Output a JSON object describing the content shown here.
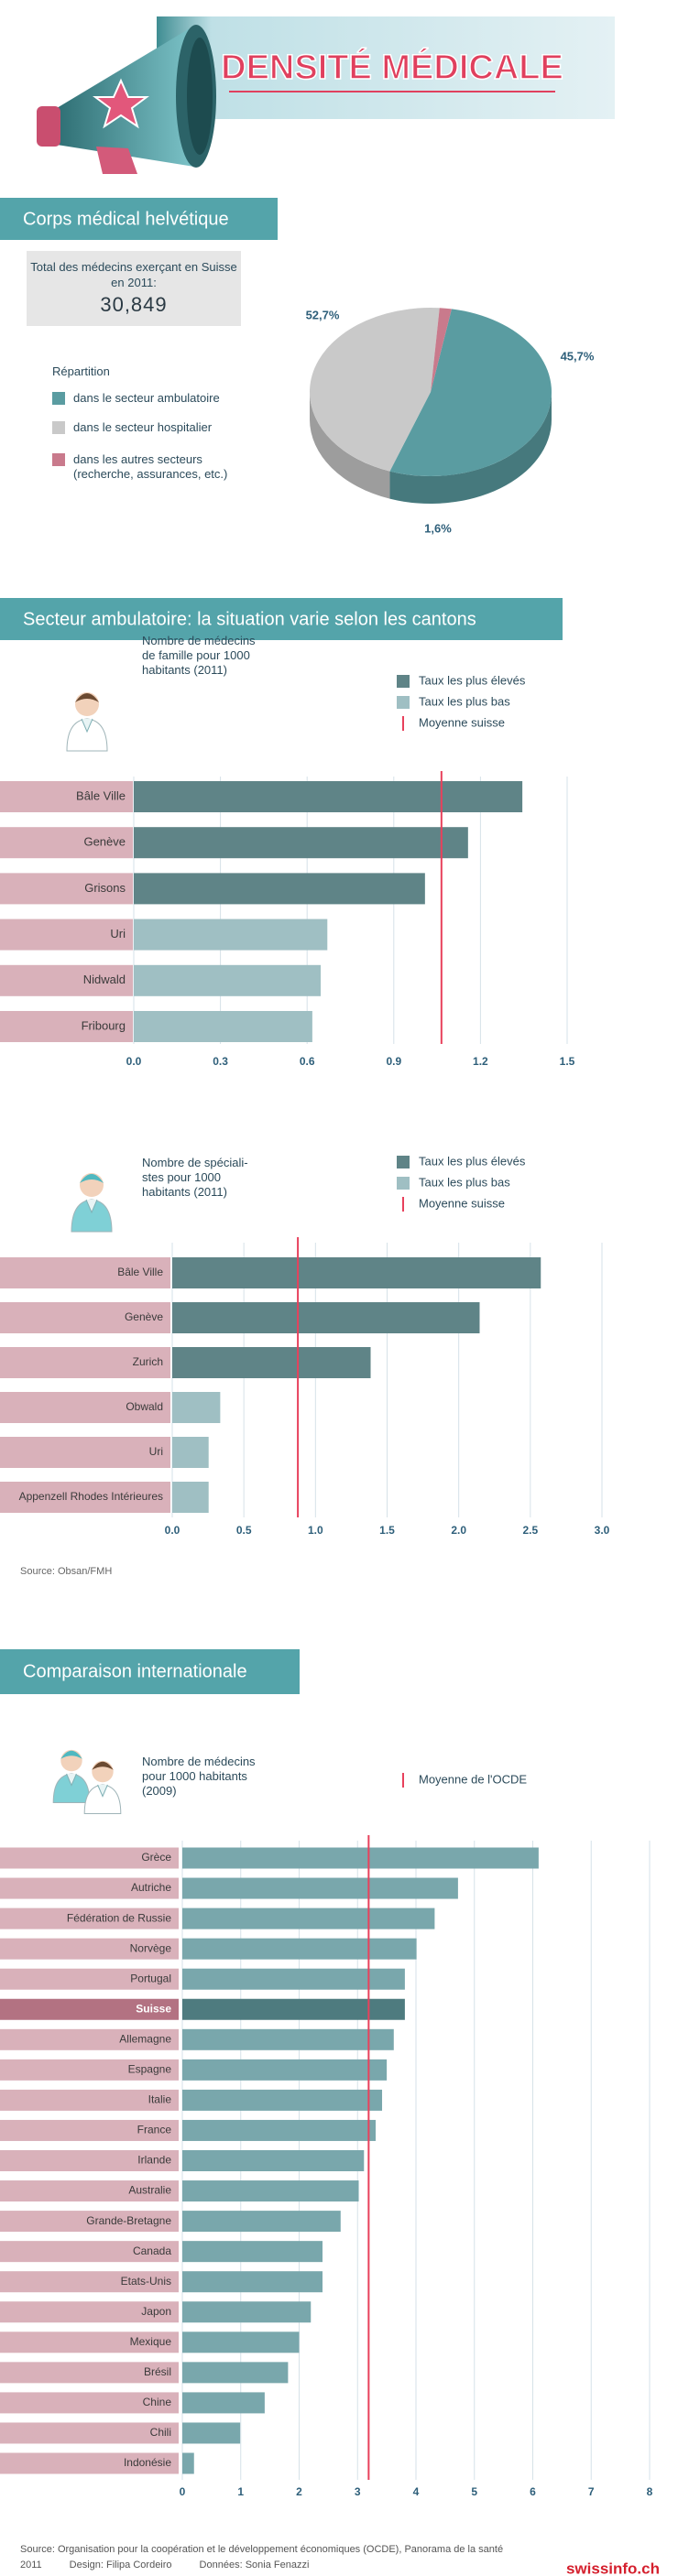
{
  "header": {
    "title": "DENSITÉ MÉDICALE"
  },
  "sections": [
    "Corps médical helvétique",
    "Secteur ambulatoire: la situation varie selon les cantons",
    "Comparaison internationale"
  ],
  "total_box": {
    "label": "Total des médecins exerçant en Suisse en 2011:",
    "value": "30,849"
  },
  "source_1": "Source: Obsan/FMH",
  "footer": {
    "source": "Source: Organisation pour la coopération et le développement économiques (OCDE), Panorama de la santé 2011",
    "design": "Design: Filipa Cordeiro",
    "data": "Données: Sonia Fenazzi",
    "logo": "swissinfo.ch"
  },
  "chart_data": [
    {
      "type": "pie",
      "title": "Répartition",
      "categories": [
        "dans le secteur ambulatoire",
        "dans le secteur hospitalier",
        "dans les autres secteurs (recherche, assurances, etc.)"
      ],
      "values": [
        52.7,
        45.7,
        1.6
      ],
      "value_labels": [
        "52,7%",
        "45,7%",
        "1,6%"
      ],
      "colors": [
        "#5a9ca1",
        "#c9c9c9",
        "#c97a8c"
      ]
    },
    {
      "type": "bar",
      "subtitle": "Nombre de médecins de famille pour 1000 habitants (2011)",
      "categories": [
        "Bâle Ville",
        "Genève",
        "Grisons",
        "Uri",
        "Nidwald",
        "Fribourg"
      ],
      "series": [
        {
          "name": "Taux les plus élevés",
          "color": "#5f8487",
          "values": [
            1.345,
            1.157,
            1.008,
            null,
            null,
            null
          ]
        },
        {
          "name": "Taux les plus bas",
          "color": "#9fbfc3",
          "values": [
            null,
            null,
            null,
            0.67,
            0.647,
            0.618
          ]
        }
      ],
      "reference_line": {
        "name": "Moyenne suisse",
        "value": 1.065,
        "color": "#e8415c"
      },
      "xlim": [
        0,
        1.5
      ],
      "xticks": [
        {
          "value": 0,
          "label": "0.0"
        },
        0.3,
        0.6,
        0.9,
        1.2,
        1.5
      ],
      "grid": true
    },
    {
      "type": "bar",
      "subtitle": "Nombre de spéciali-stes pour 1000 habitants (2011)",
      "categories": [
        "Bâle Ville",
        "Genève",
        "Zurich",
        "Obwald",
        "Uri",
        "Appenzell Rhodes Intérieures"
      ],
      "series": [
        {
          "name": "Taux les plus élevés",
          "color": "#5f8487",
          "values": [
            2.573,
            2.146,
            1.385,
            null,
            null,
            null
          ]
        },
        {
          "name": "Taux les plus bas",
          "color": "#9fbfc3",
          "values": [
            null,
            null,
            null,
            0.335,
            0.254,
            0.254
          ]
        }
      ],
      "reference_line": {
        "name": "Moyenne suisse",
        "value": 0.877,
        "color": "#e8415c"
      },
      "xlim": [
        0,
        3
      ],
      "xticks": [
        {
          "value": 0,
          "label": "0.0"
        },
        0.5,
        {
          "value": 1,
          "label": "1.0"
        },
        1.5,
        {
          "value": 2,
          "label": "2.0"
        },
        2.5,
        {
          "value": 3,
          "label": "3.0"
        }
      ],
      "grid": true
    },
    {
      "type": "bar",
      "subtitle": "Nombre de médecins pour 1000 habitants (2009)",
      "categories": [
        "Grèce",
        "Autriche",
        "Fédération de Russie",
        "Norvège",
        "Portugal",
        "Suisse",
        "Allemagne",
        "Espagne",
        "Italie",
        "France",
        "Irlande",
        "Australie",
        "Grande-Bretagne",
        "Canada",
        "Etats-Unis",
        "Japon",
        "Mexique",
        "Brésil",
        "Chine",
        "Chili",
        "Indonésie"
      ],
      "values": [
        6.1,
        4.72,
        4.32,
        4.01,
        3.81,
        3.81,
        3.62,
        3.5,
        3.42,
        3.31,
        3.11,
        3.02,
        2.71,
        2.4,
        2.4,
        2.2,
        2.0,
        1.81,
        1.41,
        0.99,
        0.2
      ],
      "color": "#79a7ac",
      "colors": [
        "#79a7ac",
        "#79a7ac",
        "#79a7ac",
        "#79a7ac",
        "#79a7ac",
        "#4e7b7f",
        "#79a7ac",
        "#79a7ac",
        "#79a7ac",
        "#79a7ac",
        "#79a7ac",
        "#79a7ac",
        "#79a7ac",
        "#79a7ac",
        "#79a7ac",
        "#79a7ac",
        "#79a7ac",
        "#79a7ac",
        "#79a7ac",
        "#79a7ac",
        "#79a7ac"
      ],
      "reference_line": {
        "name": "Moyenne de l'OCDE",
        "value": 3.19,
        "color": "#e8415c"
      },
      "xlim": [
        0,
        8
      ],
      "xticks": [
        0,
        1,
        2,
        3,
        4,
        5,
        6,
        7,
        8
      ],
      "grid": true
    }
  ]
}
